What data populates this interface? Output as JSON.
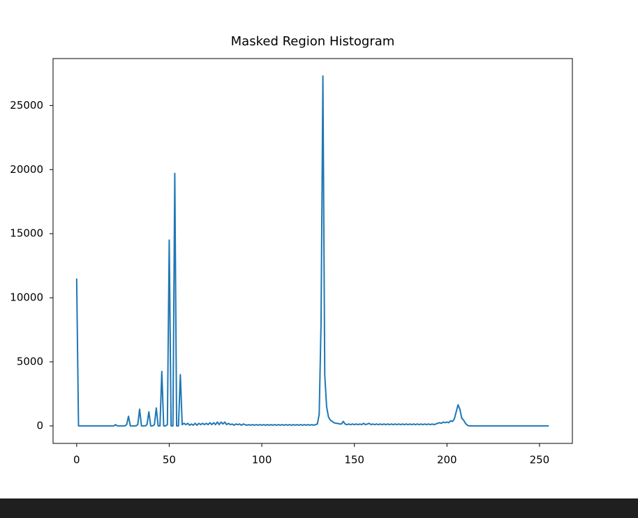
{
  "chart_data": {
    "type": "line",
    "title": "Masked Region Histogram",
    "x": [
      0,
      1,
      2,
      3,
      4,
      5,
      6,
      7,
      8,
      9,
      10,
      11,
      12,
      13,
      14,
      15,
      16,
      17,
      18,
      19,
      20,
      21,
      22,
      23,
      24,
      25,
      26,
      27,
      28,
      29,
      30,
      31,
      32,
      33,
      34,
      35,
      36,
      37,
      38,
      39,
      40,
      41,
      42,
      43,
      44,
      45,
      46,
      47,
      48,
      49,
      50,
      51,
      52,
      53,
      54,
      55,
      56,
      57,
      58,
      59,
      60,
      61,
      62,
      63,
      64,
      65,
      66,
      67,
      68,
      69,
      70,
      71,
      72,
      73,
      74,
      75,
      76,
      77,
      78,
      79,
      80,
      81,
      82,
      83,
      84,
      85,
      86,
      87,
      88,
      89,
      90,
      91,
      92,
      93,
      94,
      95,
      96,
      97,
      98,
      99,
      100,
      101,
      102,
      103,
      104,
      105,
      106,
      107,
      108,
      109,
      110,
      111,
      112,
      113,
      114,
      115,
      116,
      117,
      118,
      119,
      120,
      121,
      122,
      123,
      124,
      125,
      126,
      127,
      128,
      129,
      130,
      131,
      132,
      133,
      134,
      135,
      136,
      137,
      138,
      139,
      140,
      141,
      142,
      143,
      144,
      145,
      146,
      147,
      148,
      149,
      150,
      151,
      152,
      153,
      154,
      155,
      156,
      157,
      158,
      159,
      160,
      161,
      162,
      163,
      164,
      165,
      166,
      167,
      168,
      169,
      170,
      171,
      172,
      173,
      174,
      175,
      176,
      177,
      178,
      179,
      180,
      181,
      182,
      183,
      184,
      185,
      186,
      187,
      188,
      189,
      190,
      191,
      192,
      193,
      194,
      195,
      196,
      197,
      198,
      199,
      200,
      201,
      202,
      203,
      204,
      205,
      206,
      207,
      208,
      209,
      210,
      211,
      212,
      213,
      214,
      215,
      216,
      217,
      218,
      219,
      220,
      221,
      222,
      223,
      224,
      225,
      226,
      227,
      228,
      229,
      230,
      231,
      232,
      233,
      234,
      235,
      236,
      237,
      238,
      239,
      240,
      241,
      242,
      243,
      244,
      245,
      246,
      247,
      248,
      249,
      250,
      251,
      252,
      253,
      254,
      255
    ],
    "series": [
      {
        "color": "#1f77b4",
        "values": [
          11500,
          0,
          0,
          0,
          0,
          0,
          0,
          0,
          0,
          0,
          0,
          0,
          0,
          0,
          0,
          0,
          0,
          0,
          0,
          0,
          0,
          100,
          0,
          0,
          0,
          0,
          0,
          100,
          750,
          0,
          0,
          0,
          0,
          100,
          1300,
          0,
          0,
          0,
          100,
          1100,
          0,
          0,
          100,
          1400,
          0,
          0,
          4250,
          0,
          0,
          100,
          14500,
          0,
          0,
          19700,
          0,
          0,
          4000,
          100,
          200,
          100,
          200,
          50,
          150,
          50,
          200,
          50,
          200,
          100,
          200,
          100,
          200,
          100,
          250,
          100,
          250,
          100,
          300,
          100,
          300,
          150,
          300,
          100,
          200,
          100,
          150,
          50,
          150,
          100,
          150,
          50,
          150,
          100,
          50,
          100,
          50,
          100,
          50,
          100,
          50,
          100,
          50,
          100,
          50,
          100,
          50,
          100,
          50,
          100,
          50,
          100,
          50,
          100,
          50,
          100,
          50,
          100,
          50,
          100,
          50,
          100,
          50,
          100,
          50,
          100,
          50,
          100,
          50,
          100,
          50,
          100,
          150,
          900,
          8000,
          27300,
          4000,
          1500,
          700,
          450,
          350,
          250,
          200,
          200,
          150,
          150,
          350,
          150,
          100,
          150,
          100,
          150,
          100,
          150,
          100,
          150,
          100,
          200,
          100,
          150,
          200,
          100,
          150,
          100,
          150,
          100,
          150,
          100,
          150,
          100,
          150,
          100,
          150,
          100,
          150,
          100,
          150,
          100,
          150,
          100,
          150,
          100,
          150,
          100,
          150,
          100,
          150,
          100,
          150,
          100,
          150,
          100,
          150,
          100,
          150,
          100,
          150,
          200,
          250,
          200,
          300,
          250,
          300,
          250,
          400,
          350,
          550,
          1100,
          1650,
          1300,
          600,
          450,
          200,
          50,
          0,
          0,
          0,
          0,
          0,
          0,
          0,
          0,
          0,
          0,
          0,
          0,
          0,
          0,
          0,
          0,
          0,
          0,
          0,
          0,
          0,
          0,
          0,
          0,
          0,
          0,
          0,
          0,
          0,
          0,
          0,
          0,
          0,
          0,
          0,
          0,
          0,
          0,
          0,
          0,
          0,
          0,
          0,
          0
        ]
      }
    ],
    "xlim": [
      -12.75,
      267.75
    ],
    "xticks": [
      0,
      50,
      100,
      150,
      200,
      250
    ],
    "ylim": [
      -1365,
      28665
    ],
    "yticks": [
      0,
      5000,
      10000,
      15000,
      20000,
      25000
    ]
  }
}
